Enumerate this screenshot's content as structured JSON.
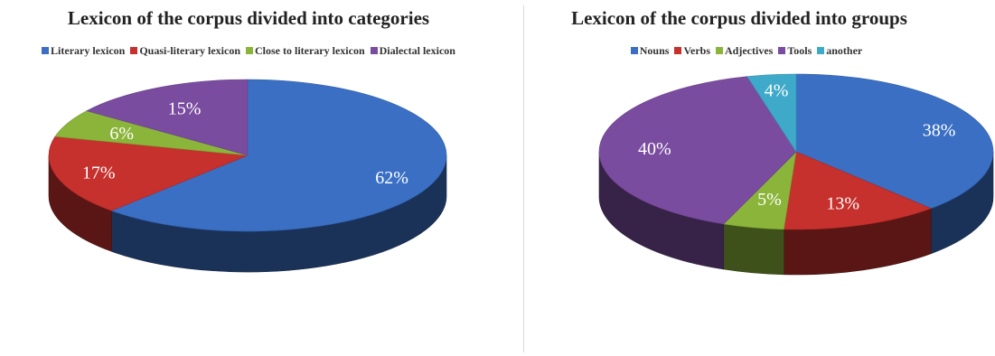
{
  "chart_data": [
    {
      "type": "pie",
      "title": "Lexicon of the corpus divided into categories",
      "legend_placement": "top",
      "slices": [
        {
          "name": "Literary lexicon",
          "value": 62,
          "label": "62%",
          "color": "#3a6fc4"
        },
        {
          "name": "Quasi-literary lexicon",
          "value": 17,
          "label": "17%",
          "color": "#c6302d"
        },
        {
          "name": "Close to literary lexicon",
          "value": 6,
          "label": "6%",
          "color": "#8bb53a"
        },
        {
          "name": "Dialectal lexicon",
          "value": 15,
          "label": "15%",
          "color": "#7a4ca0"
        }
      ]
    },
    {
      "type": "pie",
      "title": "Lexicon of the corpus divided into groups",
      "legend_placement": "top",
      "slices": [
        {
          "name": "Nouns",
          "value": 38,
          "label": "38%",
          "color": "#3a6fc4"
        },
        {
          "name": "Verbs",
          "value": 13,
          "label": "13%",
          "color": "#c6302d"
        },
        {
          "name": "Adjectives",
          "value": 5,
          "label": "5%",
          "color": "#8bb53a"
        },
        {
          "name": "Tools",
          "value": 40,
          "label": "40%",
          "color": "#7a4ca0"
        },
        {
          "name": "another",
          "value": 4,
          "label": "4%",
          "color": "#3fa9c9"
        }
      ]
    }
  ]
}
